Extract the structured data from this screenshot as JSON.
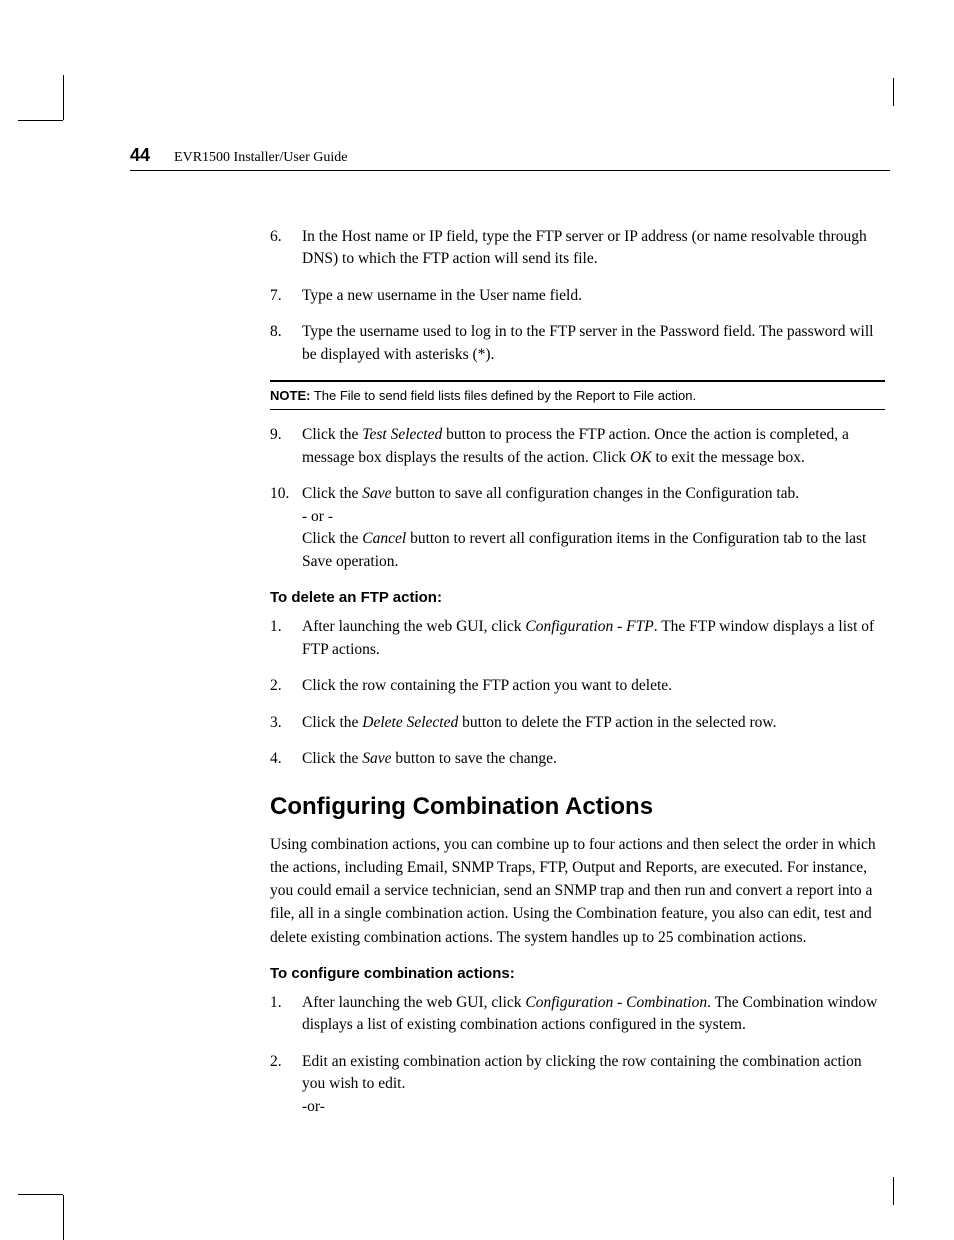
{
  "page_number": "44",
  "header_title": "EVR1500 Installer/User Guide",
  "list1": [
    {
      "n": "6.",
      "text_a": "In the Host name or IP field, type the FTP server or IP address (or name resolvable through DNS) to which the FTP action will send its file."
    },
    {
      "n": "7.",
      "text_a": "Type a new username in the User name field."
    },
    {
      "n": "8.",
      "text_a": "Type the username used to log in to the FTP server in the Password field. The password will be displayed with asterisks (*)."
    }
  ],
  "note": {
    "label": "NOTE:",
    "text": " The File to send field lists files defined by the Report to File action."
  },
  "list2": [
    {
      "n": "9.",
      "pre": "Click the ",
      "it": "Test Selected",
      "post": " button to process the FTP action. Once the action is completed, a message box displays the results of the action. Click ",
      "it2": "OK",
      "post2": " to exit the message box."
    },
    {
      "n": "10.",
      "pre": "Click the ",
      "it": "Save",
      "post": " button to save all configuration changes in the Configuration tab.",
      "or": "- or -",
      "pre2": "Click the ",
      "it2": "Cancel",
      "post2": " button to revert all configuration items in the Configuration tab to the last Save operation."
    }
  ],
  "sub1": "To delete an FTP action:",
  "list3": [
    {
      "n": "1.",
      "pre": "After launching the web GUI, click ",
      "it": "Configuration - FTP",
      "post": ". The FTP window displays a list of FTP actions."
    },
    {
      "n": "2.",
      "pre": "Click the row containing the FTP action you want to delete."
    },
    {
      "n": "3.",
      "pre": "Click the ",
      "it": "Delete Selected",
      "post": " button to delete the FTP action in the selected row."
    },
    {
      "n": "4.",
      "pre": "Click the ",
      "it": "Save",
      "post": " button to save the change."
    }
  ],
  "section_title": "Configuring Combination Actions",
  "section_body": "Using combination actions, you can combine up to four actions and then select the order in which the actions, including Email, SNMP Traps, FTP, Output and Reports, are executed. For instance, you could email a service technician, send an SNMP trap and then run and convert a report into a file, all in a single combination action. Using the Combination feature, you also can edit, test and delete existing combination actions. The system handles up to 25 combination actions.",
  "sub2": "To configure combination actions:",
  "list4": [
    {
      "n": "1.",
      "pre": "After launching the web GUI, click ",
      "it": "Configuration - Combination",
      "post": ". The Combination window displays a list of existing combination actions configured in the system."
    },
    {
      "n": "2.",
      "pre": "Edit an existing combination action by clicking the row containing the combination action you wish to edit.",
      "or": "-or-"
    }
  ]
}
